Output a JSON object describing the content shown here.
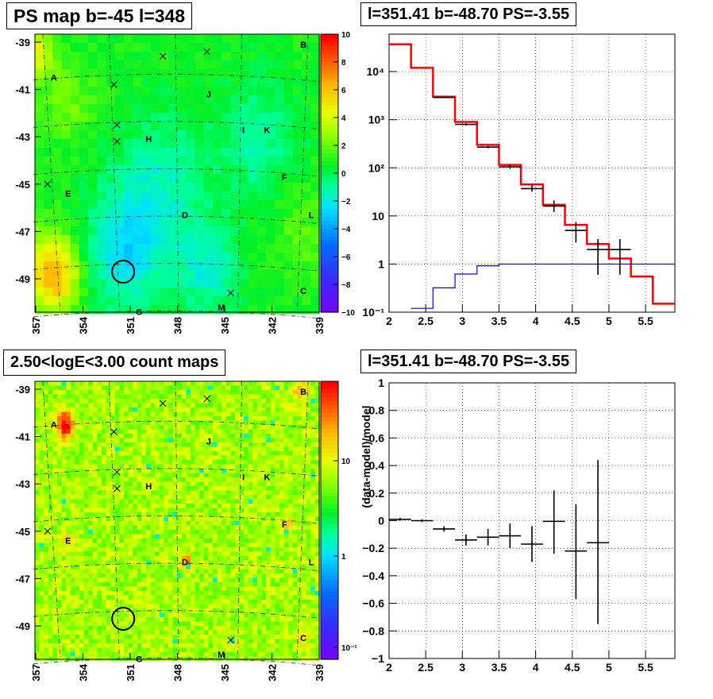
{
  "chart_data": [
    {
      "type": "heatmap",
      "title": "PS map b=-45 l=348",
      "x_ticks": [
        "357",
        "354",
        "351",
        "348",
        "345",
        "342",
        "339"
      ],
      "y_ticks": [
        "-39",
        "-41",
        "-43",
        "-45",
        "-47",
        "-49"
      ],
      "colorbar": {
        "scale": "linear",
        "range": [
          -10,
          10
        ],
        "ticks": [
          "10",
          "8",
          "6",
          "4",
          "2",
          "0",
          "−2",
          "−4",
          "−6",
          "−8",
          "−10"
        ]
      },
      "sources": [
        {
          "label": "A",
          "l": 355.8,
          "b": -40.5
        },
        {
          "label": "B",
          "l": 340.0,
          "b": -39.1
        },
        {
          "label": "C",
          "l": 340.0,
          "b": -49.5
        },
        {
          "label": "D",
          "l": 347.5,
          "b": -46.3
        },
        {
          "label": "E",
          "l": 354.9,
          "b": -45.4
        },
        {
          "label": "F",
          "l": 341.2,
          "b": -44.7
        },
        {
          "label": "G",
          "l": 350.4,
          "b": -50.4
        },
        {
          "label": "H",
          "l": 349.8,
          "b": -43.1
        },
        {
          "label": "I",
          "l": 343.8,
          "b": -42.7
        },
        {
          "label": "J",
          "l": 346.0,
          "b": -41.2
        },
        {
          "label": "K",
          "l": 342.3,
          "b": -42.7
        },
        {
          "label": "L",
          "l": 339.5,
          "b": -46.3
        },
        {
          "label": "M",
          "l": 345.2,
          "b": -50.2
        }
      ],
      "markers_x": [
        [
          348.9,
          -39.6
        ],
        [
          352.0,
          -40.8
        ],
        [
          346.1,
          -39.4
        ],
        [
          351.8,
          -42.5
        ],
        [
          351.8,
          -43.2
        ],
        [
          356.2,
          -45.0
        ],
        [
          344.6,
          -49.6
        ]
      ],
      "circle": {
        "l": 351.41,
        "b": -48.7
      }
    },
    {
      "type": "line",
      "title": "l=351.41 b=-48.70 PS=-3.55",
      "x_ticks": [
        "2",
        "2.5",
        "3",
        "3.5",
        "4",
        "4.5",
        "5",
        "5.5"
      ],
      "y_ticks": [
        "10⁻¹",
        "1",
        "10",
        "10²",
        "10³",
        "10⁴"
      ],
      "xlim": [
        2.0,
        5.9
      ],
      "ylim": [
        0.1,
        60000
      ],
      "y_scale": "log",
      "grid": true,
      "series": [
        {
          "color": "#ff0000",
          "step_edges": [
            2.0,
            2.3,
            2.6,
            2.9,
            3.2,
            3.5,
            3.8,
            4.1,
            4.4,
            4.7,
            5.0,
            5.3,
            5.6,
            5.9
          ],
          "values": [
            37000,
            12000,
            3000,
            900,
            300,
            115,
            45,
            17,
            6.5,
            2.6,
            1.3,
            0.55,
            0.15
          ]
        },
        {
          "color": "#0000ff",
          "step_edges": [
            2.3,
            2.6,
            2.9,
            3.2,
            3.5,
            3.8,
            4.1,
            4.4,
            4.7,
            5.0,
            5.3,
            5.6,
            5.9
          ],
          "values": [
            0.12,
            0.32,
            0.62,
            0.92,
            1.0,
            1.0,
            1.0,
            1.0,
            1.0,
            1.0,
            1.0,
            1.0
          ]
        },
        {
          "color": "#000000",
          "type": "errorbar",
          "points": [
            {
              "x": 2.75,
              "y": 2900,
              "xerr": 0.15,
              "ylo": 2800,
              "yhi": 3000
            },
            {
              "x": 3.05,
              "y": 800,
              "xerr": 0.15,
              "ylo": 760,
              "yhi": 840
            },
            {
              "x": 3.35,
              "y": 270,
              "xerr": 0.15,
              "ylo": 255,
              "yhi": 285
            },
            {
              "x": 3.65,
              "y": 105,
              "xerr": 0.15,
              "ylo": 95,
              "yhi": 115
            },
            {
              "x": 3.95,
              "y": 37,
              "xerr": 0.15,
              "ylo": 32,
              "yhi": 44
            },
            {
              "x": 4.25,
              "y": 16,
              "xerr": 0.15,
              "ylo": 12,
              "yhi": 21
            },
            {
              "x": 4.55,
              "y": 5,
              "xerr": 0.15,
              "ylo": 2.8,
              "yhi": 7.5
            },
            {
              "x": 4.85,
              "y": 2,
              "xerr": 0.15,
              "ylo": 0.6,
              "yhi": 3.3
            },
            {
              "x": 5.15,
              "y": 2,
              "xerr": 0.15,
              "ylo": 0.6,
              "yhi": 3.3
            }
          ]
        }
      ]
    },
    {
      "type": "heatmap",
      "title": "2.50<logE<3.00 count maps",
      "x_ticks": [
        "357",
        "354",
        "351",
        "348",
        "345",
        "342",
        "339"
      ],
      "y_ticks": [
        "-39",
        "-41",
        "-43",
        "-45",
        "-47",
        "-49"
      ],
      "colorbar": {
        "scale": "log",
        "ticks": [
          "10",
          "1",
          "10⁻¹"
        ]
      }
    },
    {
      "type": "scatter",
      "title": "l=351.41 b=-48.70 PS=-3.55",
      "ylabel": "(data-model)/model",
      "x_ticks": [
        "2",
        "2.5",
        "3",
        "3.5",
        "4",
        "4.5",
        "5",
        "5.5"
      ],
      "y_ticks": [
        "1",
        "0.8",
        "0.6",
        "0.4",
        "0.2",
        "0",
        "−0.2",
        "−0.4",
        "−0.6",
        "−0.8",
        "−1"
      ],
      "xlim": [
        2.0,
        5.9
      ],
      "ylim": [
        -1,
        1
      ],
      "grid": true,
      "points": [
        {
          "x": 2.15,
          "y": 0.01,
          "xerr": 0.15,
          "ylo": 0.0,
          "yhi": 0.02
        },
        {
          "x": 2.45,
          "y": 0.0,
          "xerr": 0.15,
          "ylo": -0.01,
          "yhi": 0.01
        },
        {
          "x": 2.75,
          "y": -0.06,
          "xerr": 0.15,
          "ylo": -0.08,
          "yhi": -0.04
        },
        {
          "x": 3.05,
          "y": -0.14,
          "xerr": 0.15,
          "ylo": -0.18,
          "yhi": -0.1
        },
        {
          "x": 3.35,
          "y": -0.12,
          "xerr": 0.15,
          "ylo": -0.18,
          "yhi": -0.06
        },
        {
          "x": 3.65,
          "y": -0.11,
          "xerr": 0.15,
          "ylo": -0.2,
          "yhi": -0.02
        },
        {
          "x": 3.95,
          "y": -0.17,
          "xerr": 0.15,
          "ylo": -0.3,
          "yhi": -0.04
        },
        {
          "x": 4.25,
          "y": -0.005,
          "xerr": 0.15,
          "ylo": -0.24,
          "yhi": 0.22
        },
        {
          "x": 4.55,
          "y": -0.22,
          "xerr": 0.15,
          "ylo": -0.57,
          "yhi": 0.12
        },
        {
          "x": 4.85,
          "y": -0.16,
          "xerr": 0.15,
          "ylo": -0.75,
          "yhi": 0.44
        }
      ]
    }
  ]
}
